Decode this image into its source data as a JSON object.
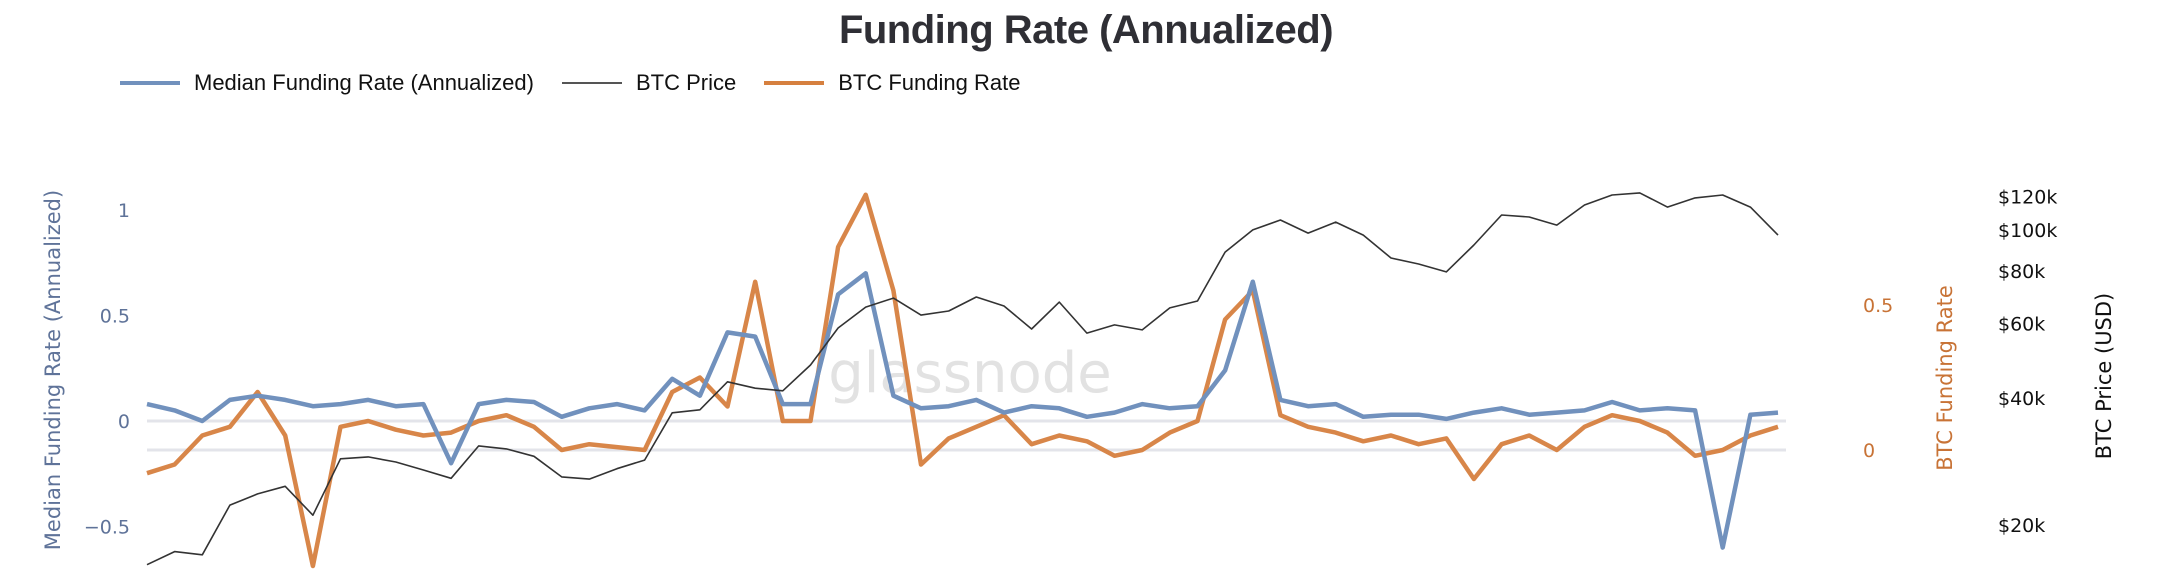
{
  "chart_data": {
    "type": "line",
    "title": "Funding Rate (Annualized)",
    "legend_placement": "top-left",
    "grid": false,
    "colors": {
      "median": "#7191bd",
      "price": "#333333",
      "btc_funding": "#d6803f",
      "zero_line": "#e3e4ea",
      "watermark": "#e2e2e2"
    },
    "watermark": "glassnode",
    "axes": {
      "left": {
        "label": "Median Funding Rate (Annualized)",
        "ticks": [
          "1",
          "0.5",
          "0",
          "−0.5"
        ],
        "tick_values": [
          1,
          0.5,
          0,
          -0.5
        ],
        "range": [
          -0.7,
          1.1
        ],
        "color": "#5f7399"
      },
      "right_funding": {
        "label": "BTC Funding Rate",
        "ticks": [
          "0.5",
          "0"
        ],
        "tick_values": [
          0.5,
          0
        ],
        "range": [
          -0.45,
          0.92
        ],
        "color": "#c87336"
      },
      "right_price": {
        "label": "BTC Price (USD)",
        "scale": "log",
        "ticks": [
          "$120k",
          "$100k",
          "$80k",
          "$60k",
          "$40k",
          "$20k"
        ],
        "tick_values": [
          120000,
          100000,
          80000,
          60000,
          40000,
          20000
        ],
        "range": [
          15500,
          125000
        ],
        "color": "#111111"
      }
    },
    "series": [
      {
        "name": "Median Funding Rate (Annualized)",
        "axis": "left",
        "values": [
          0.08,
          0.05,
          0.0,
          0.1,
          0.12,
          0.1,
          0.07,
          0.08,
          0.1,
          0.07,
          0.08,
          -0.2,
          0.08,
          0.1,
          0.09,
          0.02,
          0.06,
          0.08,
          0.05,
          0.2,
          0.12,
          0.42,
          0.4,
          0.08,
          0.08,
          0.6,
          0.7,
          0.12,
          0.06,
          0.07,
          0.1,
          0.04,
          0.07,
          0.06,
          0.02,
          0.04,
          0.08,
          0.06,
          0.07,
          0.24,
          0.66,
          0.1,
          0.07,
          0.08,
          0.02,
          0.03,
          0.03,
          0.01,
          0.04,
          0.06,
          0.03,
          0.04,
          0.05,
          0.09,
          0.05,
          0.06,
          0.05,
          -0.6,
          0.03,
          0.04
        ]
      },
      {
        "name": "BTC Price",
        "axis": "right_price",
        "values": [
          16100,
          17300,
          17000,
          22300,
          23700,
          24700,
          21100,
          28700,
          29000,
          28200,
          27000,
          25800,
          30800,
          30300,
          29100,
          26000,
          25700,
          27200,
          28500,
          36900,
          37500,
          43700,
          42200,
          41600,
          47900,
          58600,
          65700,
          69000,
          62900,
          64300,
          69400,
          66100,
          58300,
          67500,
          57000,
          59600,
          58000,
          65400,
          67900,
          88700,
          100100,
          105700,
          98400,
          104500,
          97300,
          85900,
          83100,
          79600,
          92200,
          108600,
          107400,
          102800,
          114700,
          121100,
          122500,
          113400,
          119200,
          121100,
          113400,
          97300
        ]
      },
      {
        "name": "BTC Funding Rate",
        "axis": "right_funding",
        "values": [
          -0.08,
          -0.05,
          0.05,
          0.08,
          0.2,
          0.05,
          -0.4,
          0.08,
          0.1,
          0.07,
          0.05,
          0.06,
          0.1,
          0.12,
          0.08,
          0.0,
          0.02,
          0.01,
          0.0,
          0.2,
          0.25,
          0.15,
          0.58,
          0.1,
          0.1,
          0.7,
          0.88,
          0.55,
          -0.05,
          0.04,
          0.08,
          0.12,
          0.02,
          0.05,
          0.03,
          -0.02,
          0.0,
          0.06,
          0.1,
          0.45,
          0.55,
          0.12,
          0.08,
          0.06,
          0.03,
          0.05,
          0.02,
          0.04,
          -0.1,
          0.02,
          0.05,
          0.0,
          0.08,
          0.12,
          0.1,
          0.06,
          -0.02,
          0.0,
          0.05,
          0.08
        ]
      }
    ]
  }
}
